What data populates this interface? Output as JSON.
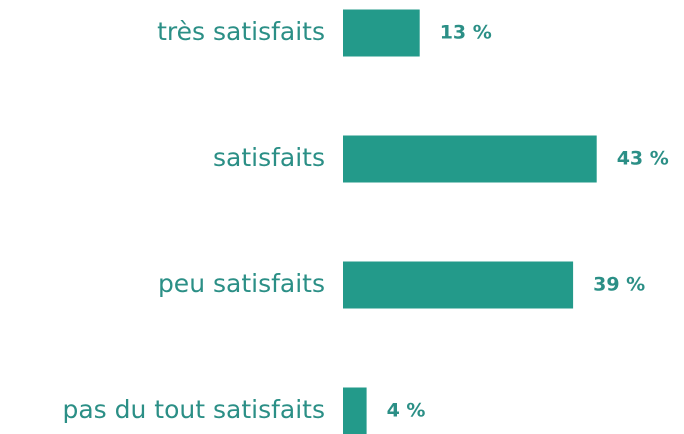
{
  "chart_data": {
    "type": "bar",
    "orientation": "horizontal",
    "categories": [
      "très satisfaits",
      "satisfaits",
      "peu satisfaits",
      "pas du tout satisfaits"
    ],
    "values": [
      13,
      43,
      39,
      4
    ],
    "value_labels": [
      "13 %",
      "43 %",
      "39 %",
      "4 %"
    ],
    "color": "#239a8a"
  }
}
